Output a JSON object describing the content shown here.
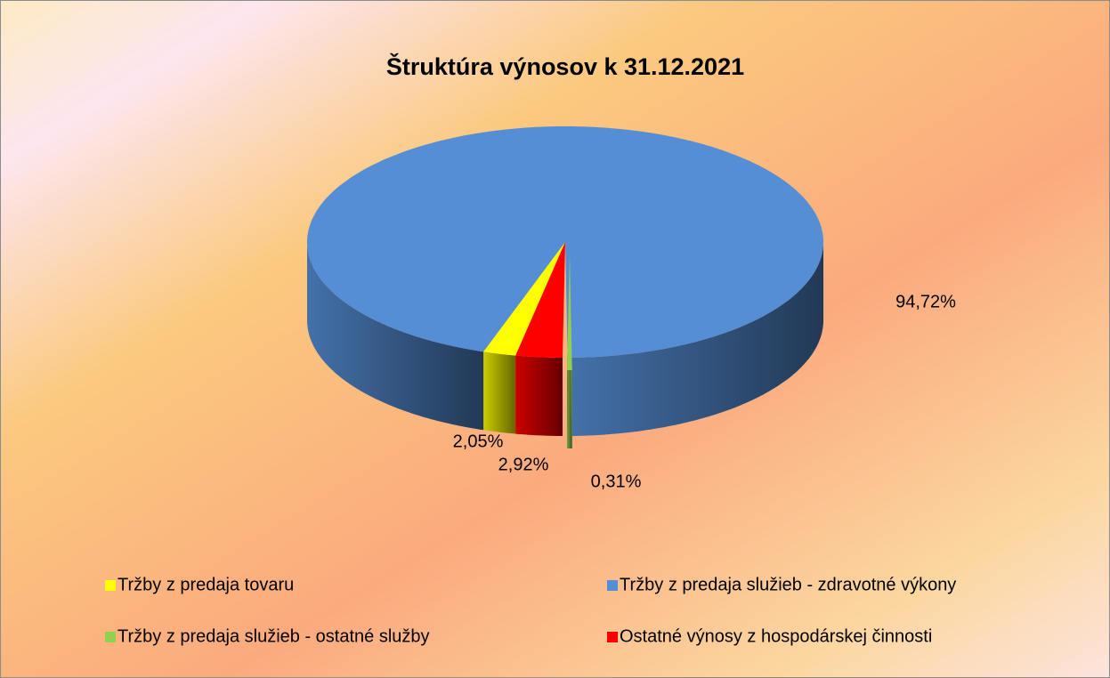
{
  "chart_data": {
    "type": "pie",
    "title": "Štruktúra výnosov k 31.12.2021",
    "categories": [
      "Tržby z predaja tovaru",
      "Tržby z predaja služieb - zdravotné výkony",
      "Tržby z predaja služieb - ostatné služby",
      "Ostatné výnosy z hospodárskej činnosti"
    ],
    "values": [
      2.05,
      94.72,
      0.31,
      2.92
    ],
    "value_labels": [
      "2,05%",
      "94,72%",
      "0,31%",
      "2,92%"
    ],
    "colors": [
      "#ffff00",
      "#558ed5",
      "#92d050",
      "#ff0000"
    ],
    "legend": "bottom"
  }
}
